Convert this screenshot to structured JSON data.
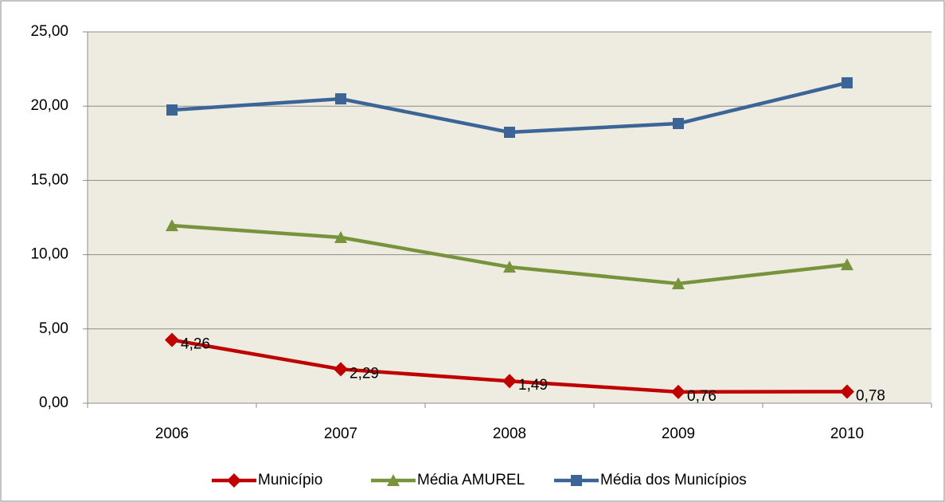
{
  "chart_data": {
    "type": "line",
    "categories": [
      "2006",
      "2007",
      "2008",
      "2009",
      "2010"
    ],
    "series": [
      {
        "name": "Município",
        "color": "#c00000",
        "marker": "diamond",
        "values": [
          4.26,
          2.29,
          1.49,
          0.76,
          0.78
        ],
        "value_labels": [
          "4,26",
          "2,29",
          "1,49",
          "0,76",
          "0,78"
        ]
      },
      {
        "name": "Média AMUREL",
        "color": "#77933c",
        "marker": "triangle",
        "values": [
          11.96,
          11.16,
          9.17,
          8.05,
          9.33
        ]
      },
      {
        "name": "Média dos Municípios",
        "color": "#3c6496",
        "marker": "square",
        "values": [
          19.74,
          20.49,
          18.24,
          18.83,
          21.57
        ]
      }
    ],
    "ylim": [
      0,
      25
    ],
    "yticks": [
      {
        "value": 0,
        "label": "0,00"
      },
      {
        "value": 5,
        "label": "5,00"
      },
      {
        "value": 10,
        "label": "10,00"
      },
      {
        "value": 15,
        "label": "15,00"
      },
      {
        "value": 20,
        "label": "20,00"
      },
      {
        "value": 25,
        "label": "25,00"
      }
    ],
    "grid": true,
    "legend": "bottom"
  }
}
